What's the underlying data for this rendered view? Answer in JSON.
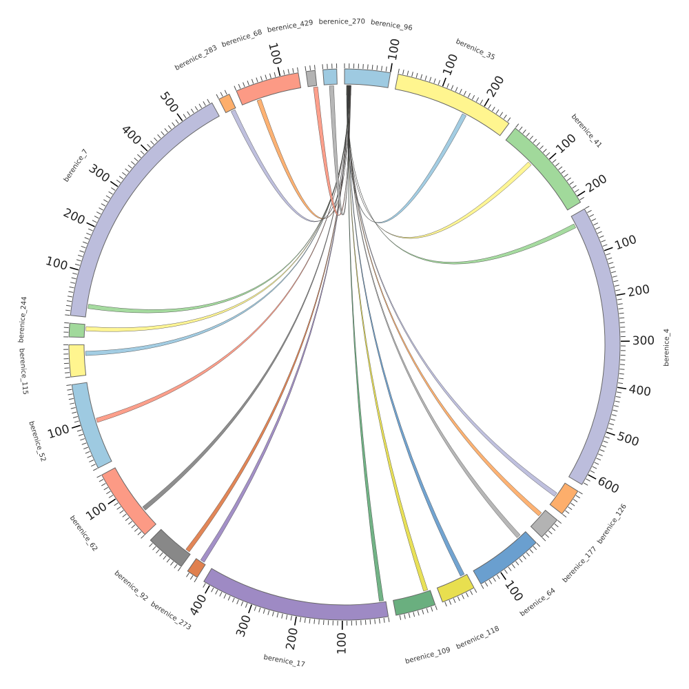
{
  "chart_data": {
    "type": "chord",
    "unit_per_major_tick": 100,
    "unit_per_minor_tick": 10,
    "segments": [
      {
        "name": "berenice_96",
        "length": 100,
        "color": "#9ecae1"
      },
      {
        "name": "berenice_35",
        "length": 265,
        "color": "#fff58f"
      },
      {
        "name": "berenice_41",
        "length": 215,
        "color": "#a1d99b"
      },
      {
        "name": "berenice_4",
        "length": 625,
        "color": "#bcbddc"
      },
      {
        "name": "berenice_126",
        "length": 60,
        "color": "#fdae6b"
      },
      {
        "name": "berenice_177",
        "length": 50,
        "color": "#b3b3b3"
      },
      {
        "name": "berenice_64",
        "length": 150,
        "color": "#6a9fcf"
      },
      {
        "name": "berenice_118",
        "length": 75,
        "color": "#e8df4f"
      },
      {
        "name": "berenice_109",
        "length": 88,
        "color": "#6aaf7f"
      },
      {
        "name": "berenice_17",
        "length": 415,
        "color": "#9e8ac4"
      },
      {
        "name": "berenice_273",
        "length": 25,
        "color": "#e0804e"
      },
      {
        "name": "berenice_92",
        "length": 88,
        "color": "#888888"
      },
      {
        "name": "berenice_62",
        "length": 160,
        "color": "#fc9a85"
      },
      {
        "name": "berenice_52",
        "length": 190,
        "color": "#9ecae1"
      },
      {
        "name": "berenice_115",
        "length": 70,
        "color": "#fff58f"
      },
      {
        "name": "berenice_244",
        "length": 30,
        "color": "#a1d99b"
      },
      {
        "name": "berenice_7",
        "length": 575,
        "color": "#bcbddc"
      },
      {
        "name": "berenice_283",
        "length": 25,
        "color": "#fdae6b"
      },
      {
        "name": "berenice_68",
        "length": 140,
        "color": "#fc9a85"
      },
      {
        "name": "berenice_429",
        "length": 20,
        "color": "#b3b3b3"
      },
      {
        "name": "berenice_270",
        "length": 30,
        "color": "#9ecae1"
      }
    ],
    "source": {
      "segment": "berenice_96",
      "start": 5,
      "end": 15,
      "color": "#3b4a6b"
    },
    "chords": [
      {
        "target": "berenice_35",
        "pos": 165,
        "color": "#9ecae1"
      },
      {
        "target": "berenice_41",
        "pos": 72,
        "color": "#fff58f"
      },
      {
        "target": "berenice_4",
        "pos": 18,
        "color": "#a1d99b"
      },
      {
        "target": "berenice_126",
        "pos": 29,
        "color": "#bcbddc"
      },
      {
        "target": "berenice_177",
        "pos": 10,
        "color": "#fdae6b"
      },
      {
        "target": "berenice_64",
        "pos": 14,
        "color": "#b3b3b3"
      },
      {
        "target": "berenice_118",
        "pos": 5,
        "color": "#6a9fcf"
      },
      {
        "target": "berenice_109",
        "pos": 5,
        "color": "#e8df4f"
      },
      {
        "target": "berenice_17",
        "pos": 5,
        "color": "#6aaf7f"
      },
      {
        "target": "berenice_273",
        "pos": 5,
        "color": "#9e8ac4"
      },
      {
        "target": "berenice_92",
        "pos": 5,
        "color": "#e0804e"
      },
      {
        "target": "berenice_62",
        "pos": 40,
        "color": "#888888"
      },
      {
        "target": "berenice_52",
        "pos": 95,
        "color": "#fc9a85"
      },
      {
        "target": "berenice_115",
        "pos": 45,
        "color": "#9ecae1"
      },
      {
        "target": "berenice_244",
        "pos": 15,
        "color": "#fff58f"
      },
      {
        "target": "berenice_7",
        "pos": 20,
        "color": "#a1d99b"
      },
      {
        "target": "berenice_283",
        "pos": 12,
        "color": "#bcbddc"
      },
      {
        "target": "berenice_68",
        "pos": 35,
        "color": "#fdae6b"
      },
      {
        "target": "berenice_429",
        "pos": 12,
        "color": "#fc9a85"
      },
      {
        "target": "berenice_270",
        "pos": 12,
        "color": "#b3b3b3"
      }
    ]
  }
}
